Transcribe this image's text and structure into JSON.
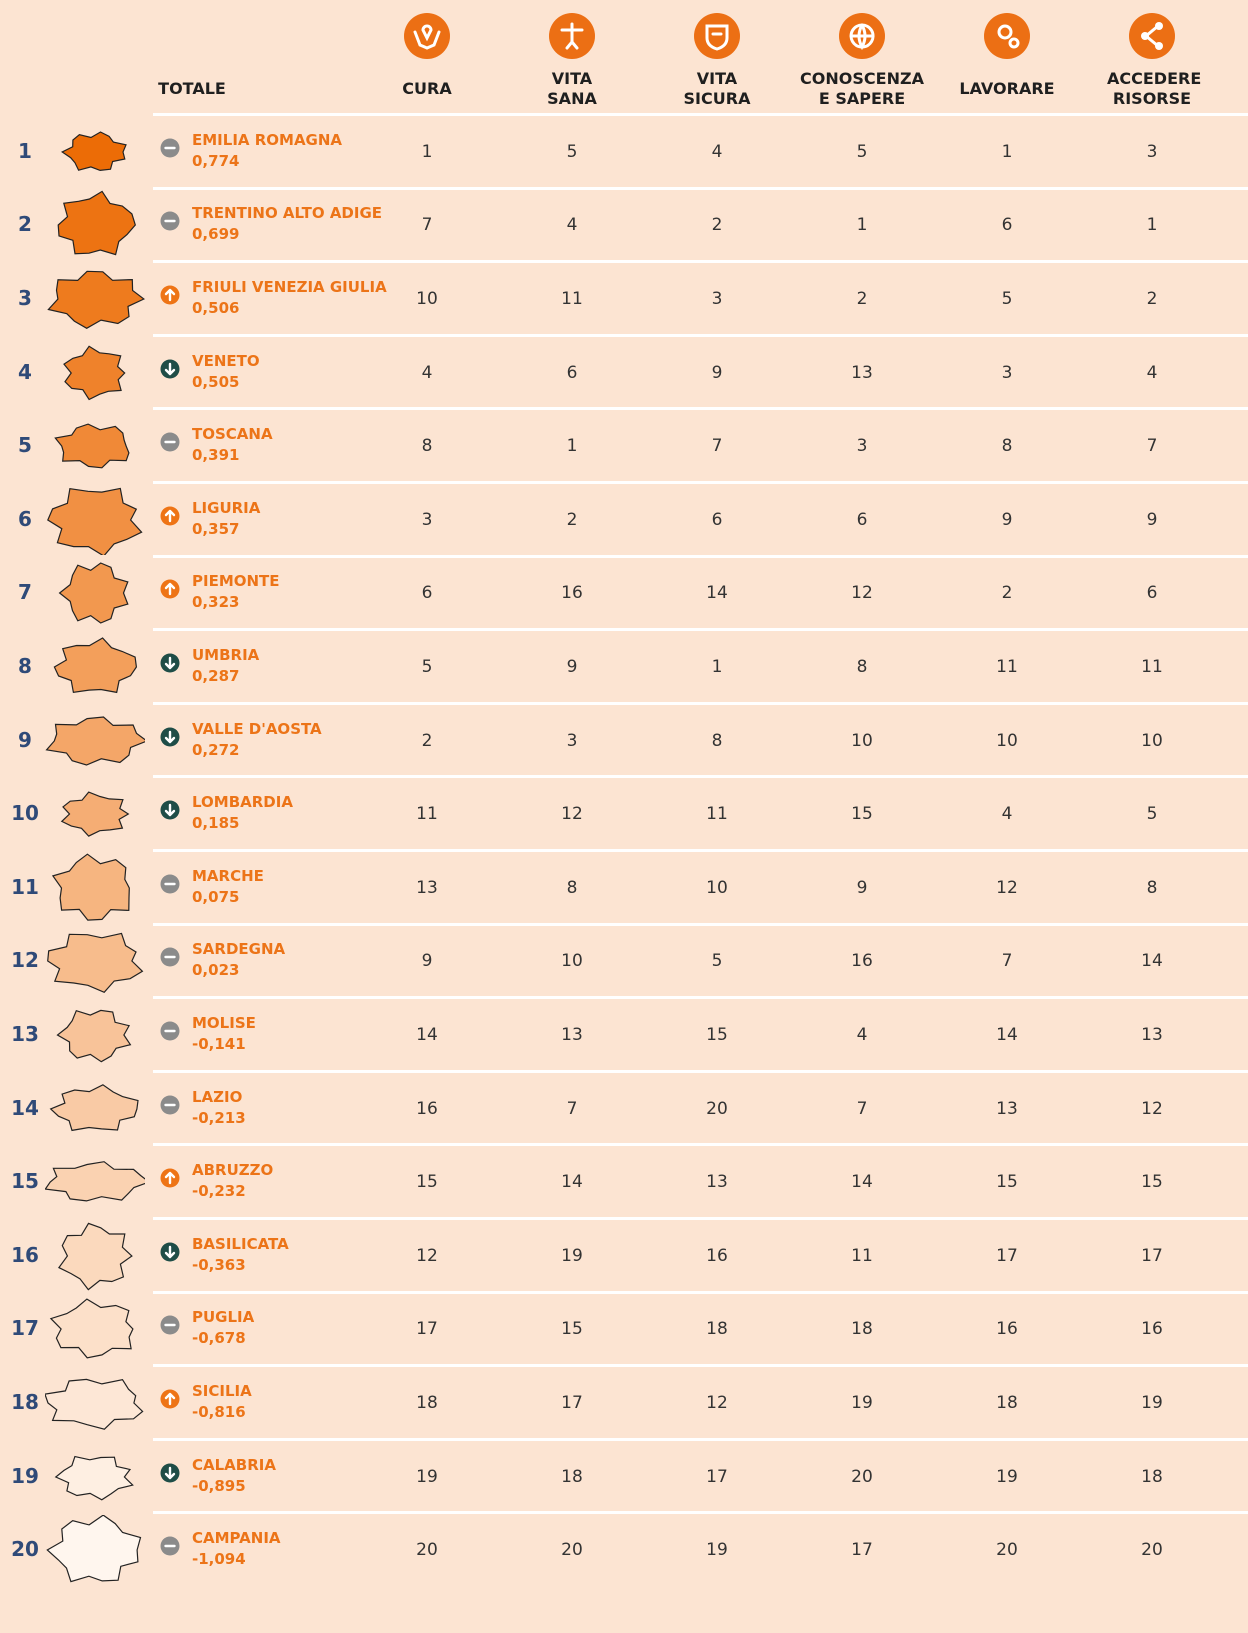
{
  "header": {
    "total": "TOTALE",
    "columns": [
      "CURA",
      "VITA SANA",
      "VITA SICURA",
      "CONOSCENZA E SAPERE",
      "LAVORARE",
      "ACCEDERE RISORSE"
    ]
  },
  "rows": [
    {
      "rank": 1,
      "name": "EMILIA ROMAGNA",
      "score": "0,774",
      "trend": "same",
      "ranks": [
        1,
        5,
        4,
        5,
        1,
        3
      ]
    },
    {
      "rank": 2,
      "name": "TRENTINO ALTO ADIGE",
      "score": "0,699",
      "trend": "same",
      "ranks": [
        7,
        4,
        2,
        1,
        6,
        1
      ]
    },
    {
      "rank": 3,
      "name": "FRIULI VENEZIA GIULIA",
      "score": "0,506",
      "trend": "up",
      "ranks": [
        10,
        11,
        3,
        2,
        5,
        2
      ]
    },
    {
      "rank": 4,
      "name": "VENETO",
      "score": "0,505",
      "trend": "down",
      "ranks": [
        4,
        6,
        9,
        13,
        3,
        4
      ]
    },
    {
      "rank": 5,
      "name": "TOSCANA",
      "score": "0,391",
      "trend": "same",
      "ranks": [
        8,
        1,
        7,
        3,
        8,
        7
      ]
    },
    {
      "rank": 6,
      "name": "LIGURIA",
      "score": "0,357",
      "trend": "up",
      "ranks": [
        3,
        2,
        6,
        6,
        9,
        9
      ]
    },
    {
      "rank": 7,
      "name": "PIEMONTE",
      "score": "0,323",
      "trend": "up",
      "ranks": [
        6,
        16,
        14,
        12,
        2,
        6
      ]
    },
    {
      "rank": 8,
      "name": "UMBRIA",
      "score": "0,287",
      "trend": "down",
      "ranks": [
        5,
        9,
        1,
        8,
        11,
        11
      ]
    },
    {
      "rank": 9,
      "name": "VALLE D'AOSTA",
      "score": "0,272",
      "trend": "down",
      "ranks": [
        2,
        3,
        8,
        10,
        10,
        10
      ]
    },
    {
      "rank": 10,
      "name": "LOMBARDIA",
      "score": "0,185",
      "trend": "down",
      "ranks": [
        11,
        12,
        11,
        15,
        4,
        5
      ]
    },
    {
      "rank": 11,
      "name": "MARCHE",
      "score": "0,075",
      "trend": "same",
      "ranks": [
        13,
        8,
        10,
        9,
        12,
        8
      ]
    },
    {
      "rank": 12,
      "name": "SARDEGNA",
      "score": "0,023",
      "trend": "same",
      "ranks": [
        9,
        10,
        5,
        16,
        7,
        14
      ]
    },
    {
      "rank": 13,
      "name": "MOLISE",
      "score": "-0,141",
      "trend": "same",
      "ranks": [
        14,
        13,
        15,
        4,
        14,
        13
      ]
    },
    {
      "rank": 14,
      "name": "LAZIO",
      "score": "-0,213",
      "trend": "same",
      "ranks": [
        16,
        7,
        20,
        7,
        13,
        12
      ]
    },
    {
      "rank": 15,
      "name": "ABRUZZO",
      "score": "-0,232",
      "trend": "up",
      "ranks": [
        15,
        14,
        13,
        14,
        15,
        15
      ]
    },
    {
      "rank": 16,
      "name": "BASILICATA",
      "score": "-0,363",
      "trend": "down",
      "ranks": [
        12,
        19,
        16,
        11,
        17,
        17
      ]
    },
    {
      "rank": 17,
      "name": "PUGLIA",
      "score": "-0,678",
      "trend": "same",
      "ranks": [
        17,
        15,
        18,
        18,
        16,
        16
      ]
    },
    {
      "rank": 18,
      "name": "SICILIA",
      "score": "-0,816",
      "trend": "up",
      "ranks": [
        18,
        17,
        12,
        19,
        18,
        19
      ]
    },
    {
      "rank": 19,
      "name": "CALABRIA",
      "score": "-0,895",
      "trend": "down",
      "ranks": [
        19,
        18,
        17,
        20,
        19,
        18
      ]
    },
    {
      "rank": 20,
      "name": "CAMPANIA",
      "score": "-1,094",
      "trend": "same",
      "ranks": [
        20,
        20,
        19,
        17,
        20,
        20
      ]
    }
  ]
}
